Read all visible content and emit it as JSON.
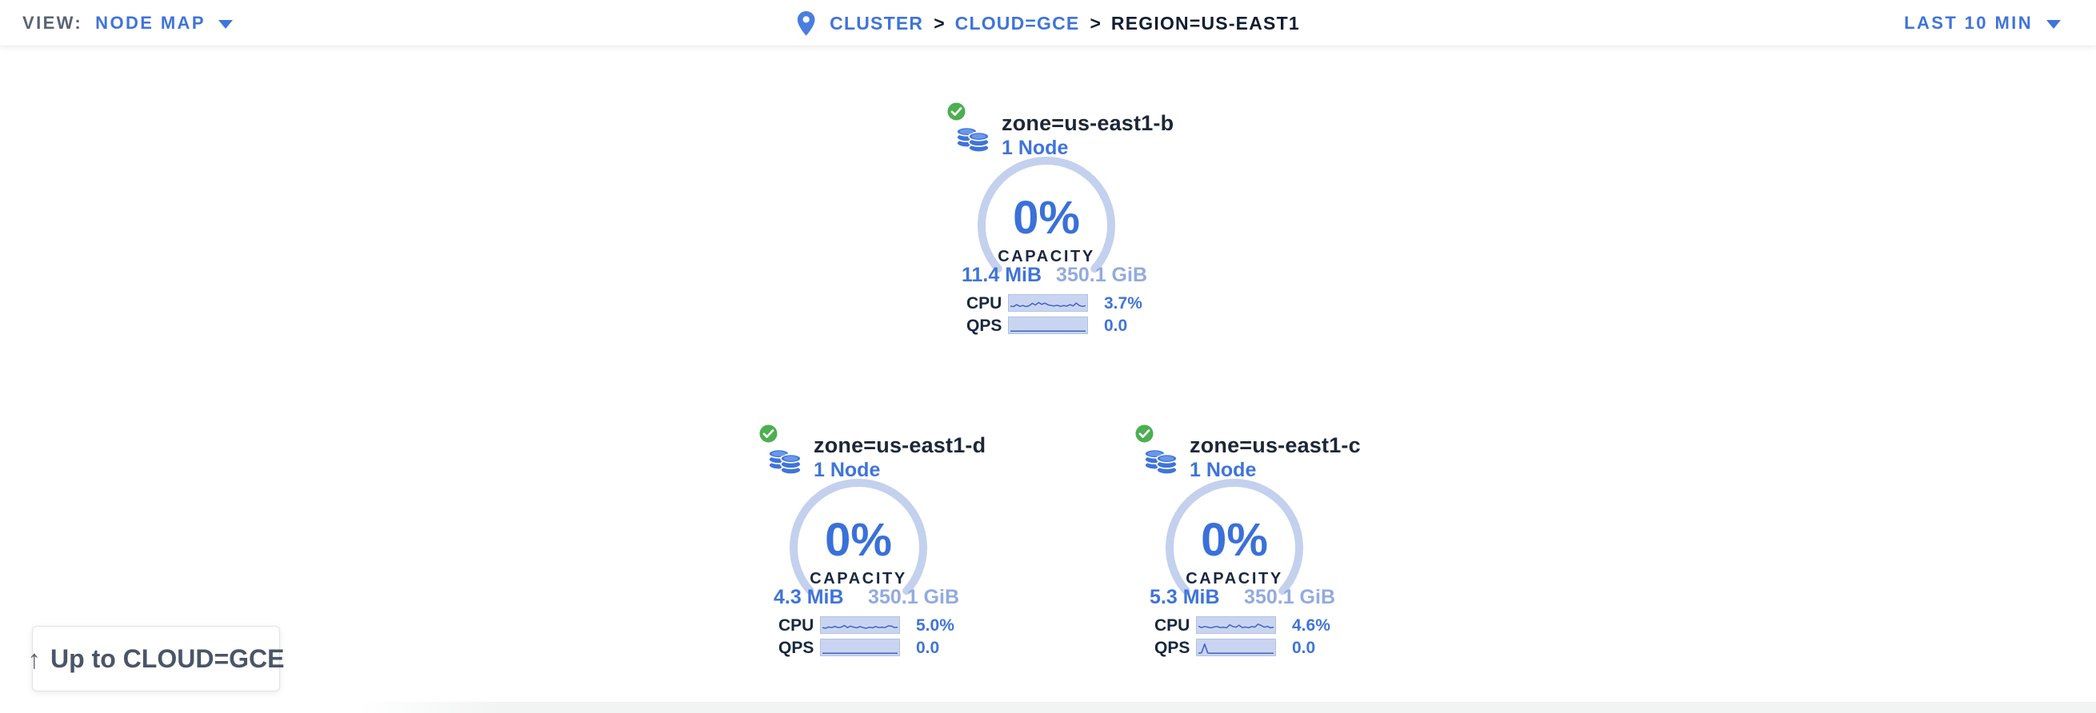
{
  "topbar": {
    "view_label": "VIEW:",
    "view_value": "NODE MAP",
    "time_range": "LAST 10 MIN",
    "breadcrumb": {
      "separator": ">",
      "items": [
        {
          "label": "CLUSTER"
        },
        {
          "label": "CLOUD=GCE"
        },
        {
          "label": "REGION=US-EAST1"
        }
      ]
    }
  },
  "nodes": [
    {
      "title": "zone=us-east1-b",
      "subtitle": "1 Node",
      "status": "healthy",
      "capacity_pct": "0%",
      "capacity_label": "CAPACITY",
      "capacity_used": "11.4 MiB",
      "capacity_total": "350.1 GiB",
      "cpu_label": "CPU",
      "cpu_value": "3.7%",
      "qps_label": "QPS",
      "qps_value": "0.0",
      "cpu_spark": [
        0.25,
        0.2,
        0.38,
        0.22,
        0.3,
        0.2,
        0.28,
        0.5,
        0.34,
        0.58,
        0.4,
        0.52,
        0.36,
        0.3,
        0.26,
        0.32,
        0.22,
        0.3,
        0.24,
        0.38,
        0.26,
        0.52,
        0.3,
        0.22,
        0.28
      ],
      "qps_spark": [
        0,
        0,
        0,
        0,
        0,
        0,
        0,
        0,
        0,
        0,
        0,
        0,
        0,
        0,
        0,
        0,
        0,
        0,
        0,
        0,
        0,
        0,
        0,
        0,
        0
      ]
    },
    {
      "title": "zone=us-east1-d",
      "subtitle": "1 Node",
      "status": "healthy",
      "capacity_pct": "0%",
      "capacity_label": "CAPACITY",
      "capacity_used": "4.3 MiB",
      "capacity_total": "350.1 GiB",
      "cpu_label": "CPU",
      "cpu_value": "5.0%",
      "qps_label": "QPS",
      "qps_value": "0.0",
      "cpu_spark": [
        0.3,
        0.25,
        0.36,
        0.3,
        0.42,
        0.3,
        0.34,
        0.5,
        0.3,
        0.44,
        0.34,
        0.28,
        0.4,
        0.3,
        0.24,
        0.34,
        0.28,
        0.4,
        0.3,
        0.34,
        0.3,
        0.46,
        0.44,
        0.3,
        0.34
      ],
      "qps_spark": [
        0,
        0,
        0,
        0,
        0,
        0,
        0,
        0,
        0,
        0,
        0,
        0,
        0,
        0,
        0,
        0,
        0,
        0,
        0,
        0,
        0,
        0,
        0,
        0,
        0
      ]
    },
    {
      "title": "zone=us-east1-c",
      "subtitle": "1 Node",
      "status": "healthy",
      "capacity_pct": "0%",
      "capacity_label": "CAPACITY",
      "capacity_used": "5.3 MiB",
      "capacity_total": "350.1 GiB",
      "cpu_label": "CPU",
      "cpu_value": "4.6%",
      "qps_label": "QPS",
      "qps_value": "0.0",
      "cpu_spark": [
        0.44,
        0.3,
        0.4,
        0.34,
        0.28,
        0.36,
        0.4,
        0.3,
        0.34,
        0.28,
        0.56,
        0.4,
        0.34,
        0.52,
        0.3,
        0.36,
        0.28,
        0.4,
        0.34,
        0.62,
        0.5,
        0.34,
        0.42,
        0.28,
        0.34
      ],
      "qps_spark": [
        0,
        0.04,
        0.85,
        0.02,
        0,
        0,
        0,
        0,
        0,
        0,
        0,
        0,
        0,
        0,
        0,
        0,
        0,
        0,
        0,
        0,
        0,
        0,
        0,
        0,
        0
      ]
    }
  ],
  "up_button": {
    "label": "Up to CLOUD=GCE",
    "arrow_glyph": "↑"
  },
  "colors": {
    "accent-blue": "#3f74d9",
    "pale-blue": "#92aae0",
    "arc": "#c3d1ee",
    "spark-bg": "#c9d5f0",
    "spark-border": "#b2c2e7",
    "spark-line": "#3d63c9",
    "dark": "#1b2a44",
    "gray": "#5b6372",
    "green": "#4caf50",
    "button-text": "#4a5568",
    "border-gray": "#e2e2e2"
  }
}
